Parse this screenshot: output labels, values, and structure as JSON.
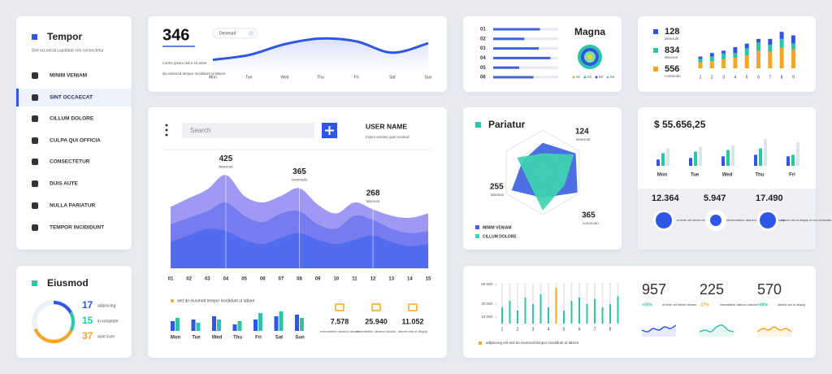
{
  "sidebar": {
    "title": "Tempor",
    "subtitle": "Sint occaecat cupidatat non consectetur",
    "items": [
      "MINIM VENIAM",
      "SINT OCCAECAT",
      "CILLUM DOLORE",
      "CULPA QUI OFFICIA",
      "CONSECTETUR",
      "DUIS AUTE",
      "NULLA PARIATUR",
      "TEMPOR INCIDIDUNT"
    ]
  },
  "eiusmod": {
    "title": "Eiusmod",
    "items": [
      {
        "value": 17,
        "label": "adipiscing",
        "color": "#3056e6"
      },
      {
        "value": 15,
        "label": "in voluptate",
        "color": "#2ec4a6"
      },
      {
        "value": 37,
        "label": "aute irure",
        "color": "#f5a623"
      }
    ]
  },
  "summary": {
    "value": 346,
    "caption": "Lorem ipsum dolor sit amet",
    "note": "do eiusmod tempor incididunt ut labore",
    "dropdown": "Deserunt",
    "chart": {
      "type": "line",
      "categories": [
        "Mon",
        "Tue",
        "Wed",
        "Thu",
        "Fri",
        "Sat",
        "Sun"
      ],
      "values": [
        25,
        35,
        58,
        70,
        64,
        40,
        60
      ],
      "ylim": [
        0,
        100
      ],
      "color": "#3056e6"
    }
  },
  "magna": {
    "title": "Magna",
    "chart": {
      "type": "bar",
      "categories": [
        "01",
        "02",
        "03",
        "04",
        "05",
        "06"
      ],
      "values": [
        72,
        48,
        70,
        88,
        40,
        62
      ],
      "xlim": [
        0,
        100
      ],
      "color": "#3f63e0"
    },
    "legend": [
      {
        "name": "01",
        "color": "#f5a623"
      },
      {
        "name": "02",
        "color": "#2ec4a6"
      },
      {
        "name": "03",
        "color": "#3056e6"
      },
      {
        "name": "04",
        "color": "#5ad1e6"
      }
    ]
  },
  "totals": {
    "items": [
      {
        "value": 128,
        "label": "deserunt",
        "color": "#3056e6"
      },
      {
        "value": 834,
        "label": "laborum",
        "color": "#2ec4a6"
      },
      {
        "value": 556,
        "label": "commodo",
        "color": "#f5a623"
      }
    ],
    "chart": {
      "type": "stacked-bar",
      "categories": [
        "1",
        "2",
        "3",
        "4",
        "5",
        "6",
        "7",
        "8",
        "9"
      ],
      "series": [
        {
          "color": "#f5a623",
          "values": [
            10,
            12,
            15,
            18,
            22,
            30,
            28,
            35,
            32
          ]
        },
        {
          "color": "#2ec4a6",
          "values": [
            6,
            8,
            10,
            8,
            12,
            14,
            12,
            15,
            10
          ]
        },
        {
          "color": "#3056e6",
          "values": [
            4,
            6,
            5,
            10,
            8,
            6,
            10,
            12,
            14
          ]
        }
      ],
      "ylim": [
        0,
        65
      ]
    }
  },
  "main": {
    "search": "Search",
    "user": "USER NAME",
    "user_note": "minim veniam quis nostrud",
    "chart": {
      "type": "area",
      "categories": [
        "01",
        "02",
        "03",
        "04",
        "05",
        "06",
        "07",
        "08",
        "09",
        "10",
        "11",
        "12",
        "13",
        "14",
        "15"
      ],
      "series": [
        {
          "color": "#8d88f2",
          "values": [
            280,
            320,
            360,
            425,
            330,
            300,
            330,
            365,
            290,
            250,
            300,
            268,
            240,
            230,
            250
          ]
        },
        {
          "color": "#6f76ee",
          "values": [
            200,
            230,
            260,
            300,
            240,
            210,
            250,
            260,
            200,
            180,
            240,
            220,
            180,
            160,
            170
          ]
        },
        {
          "color": "#4d68ee",
          "values": [
            120,
            150,
            180,
            170,
            130,
            110,
            140,
            160,
            130,
            110,
            130,
            150,
            120,
            100,
            110
          ]
        }
      ],
      "ylim": [
        0,
        500
      ],
      "annotations": [
        {
          "value": 425,
          "label": "deserunt"
        },
        {
          "value": 365,
          "label": "commodo"
        },
        {
          "value": 268,
          "label": "laborum"
        }
      ]
    },
    "legend": "sed do eiusmod tempor incididunt ut labore",
    "days": {
      "type": "bar",
      "categories": [
        "Mon",
        "Tue",
        "Wed",
        "Thu",
        "Fri",
        "Sat",
        "Sun"
      ],
      "series": [
        {
          "color": "#3056e6",
          "values": [
            12,
            14,
            18,
            8,
            14,
            18,
            20
          ]
        },
        {
          "color": "#2ec4a6",
          "values": [
            16,
            10,
            14,
            12,
            22,
            24,
            16
          ]
        }
      ],
      "ylim": [
        0,
        30
      ]
    },
    "devices": [
      {
        "value": "7.578",
        "label": "exercitation ullamco laboris"
      },
      {
        "value": "25.940",
        "label": "exercitation ullamco laboris"
      },
      {
        "value": "11.052",
        "label": "laboris nisi ut aliquip"
      }
    ]
  },
  "pariatur": {
    "title": "Pariatur",
    "chart": {
      "type": "radar",
      "rlim": [
        0,
        100
      ],
      "series": [
        {
          "name": "MINIM VENIAM",
          "color": "#3f63e0",
          "values": [
            70,
            90,
            95,
            60,
            85,
            55
          ]
        },
        {
          "name": "CILLUM DOLORE",
          "color": "#3fd3b0",
          "values": [
            45,
            85,
            60,
            90,
            40,
            70
          ]
        }
      ]
    },
    "labels": [
      {
        "value": 124,
        "label": "deserunt"
      },
      {
        "value": 255,
        "label": "laborum"
      },
      {
        "value": 365,
        "label": "commodo"
      }
    ]
  },
  "money": {
    "total": "$ 55.656,25",
    "chart": {
      "type": "bar",
      "categories": [
        "Mon",
        "Tue",
        "Wed",
        "Thu",
        "Fri"
      ],
      "series": [
        {
          "color": "#3056e6",
          "values": [
            8,
            10,
            12,
            14,
            12
          ]
        },
        {
          "color": "#2ec4a6",
          "values": [
            16,
            18,
            20,
            22,
            14
          ]
        },
        {
          "color": "#dfe3ea",
          "values": [
            22,
            24,
            26,
            34,
            30
          ]
        }
      ],
      "ylim": [
        0,
        40
      ]
    },
    "stats": [
      {
        "value": "12.364",
        "label": "ut enim ad minim veniam quis nostrud"
      },
      {
        "value": "5.947",
        "label": "exercitation ullamco laboris nisi ut aliquip"
      },
      {
        "value": "17.490",
        "label": "laboris nisi ut aliquip ex ea commodo"
      }
    ]
  },
  "monthly": {
    "chart": {
      "type": "bar",
      "categories": [
        "1",
        null,
        "2",
        null,
        "3",
        null,
        "4",
        null,
        "5",
        null,
        "6",
        null,
        "7",
        null,
        "8",
        null
      ],
      "values": [
        25000,
        35000,
        20000,
        40000,
        30000,
        45000,
        25000,
        55000,
        20000,
        35000,
        40000,
        30000,
        38000,
        25000,
        30000,
        42000
      ],
      "colors": [
        "#2ec4a6",
        "#2ec4a6",
        "#2ec4a6",
        "#2ec4a6",
        "#2ec4a6",
        "#2ec4a6",
        "#2ec4a6",
        "#f5a623",
        "#2ec4a6",
        "#2ec4a6",
        "#2ec4a6",
        "#2ec4a6",
        "#2ec4a6",
        "#2ec4a6",
        "#2ec4a6",
        "#2ec4a6"
      ],
      "ylim": [
        0,
        60000
      ],
      "yticks": [
        {
          "value": 10000,
          "label": "10 000"
        },
        {
          "value": 30000,
          "label": "30 000"
        },
        {
          "value": 60000,
          "label": "60 000"
        }
      ]
    },
    "note": "adipiscing elit sed do eiusmod tempor incididunt ut labore",
    "trend_ylim": [
      0,
      10
    ],
    "kpis": [
      {
        "value": 957,
        "change": "+35%",
        "change_color": "#2ec4a6",
        "label": "ut enim ad minim veniam",
        "color": "#3056e6",
        "trend": [
          4,
          3,
          5,
          4,
          6,
          5,
          7
        ]
      },
      {
        "value": 225,
        "change": "-17%",
        "change_color": "#f5a623",
        "label": "exercitation ullamco laboris",
        "color": "#2ec4a6",
        "trend": [
          3,
          4,
          3,
          6,
          7,
          4,
          3
        ]
      },
      {
        "value": 570,
        "change": "+48%",
        "change_color": "#2ec4a6",
        "label": "laboris nisi ut aliquip",
        "color": "#f5a623",
        "trend": [
          3,
          5,
          4,
          6,
          4,
          5,
          3
        ]
      }
    ]
  }
}
